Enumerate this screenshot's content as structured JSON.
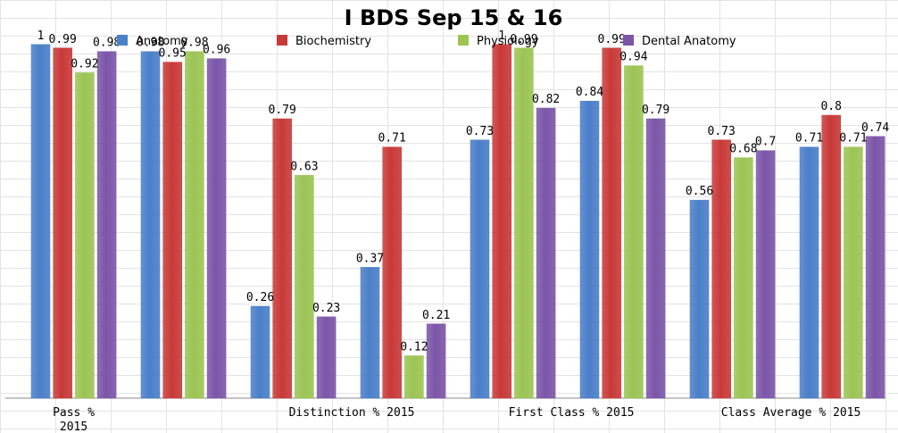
{
  "chart_data": {
    "type": "bar",
    "title": "I BDS Sep 15 & 16",
    "categories": [
      [
        "Pass %",
        "2015"
      ],
      [
        ""
      ],
      [
        "Distinction % 2015"
      ],
      [
        ""
      ],
      [
        "First Class % 2015"
      ],
      [
        ""
      ],
      [
        "Class Average %  2015"
      ],
      [
        ""
      ]
    ],
    "series": [
      {
        "name": "Anatomy",
        "color": "#4a7fc9",
        "values": [
          1,
          0.98,
          0.26,
          0.37,
          0.73,
          0.84,
          0.56,
          0.71
        ]
      },
      {
        "name": "Biochemistry",
        "color": "#c83a38",
        "values": [
          0.99,
          0.95,
          0.79,
          0.71,
          1,
          0.99,
          0.73,
          0.8
        ]
      },
      {
        "name": "Physiology",
        "color": "#9bc453",
        "values": [
          0.92,
          0.98,
          0.63,
          0.12,
          0.99,
          0.94,
          0.68,
          0.71
        ]
      },
      {
        "name": "Dental Anatomy",
        "color": "#7c55a8",
        "values": [
          0.98,
          0.96,
          0.23,
          0.21,
          0.82,
          0.79,
          0.7,
          0.74
        ]
      }
    ],
    "ylim": [
      0,
      1.05
    ],
    "xlabel": "",
    "ylabel": "",
    "legend": "top",
    "grid": true
  }
}
